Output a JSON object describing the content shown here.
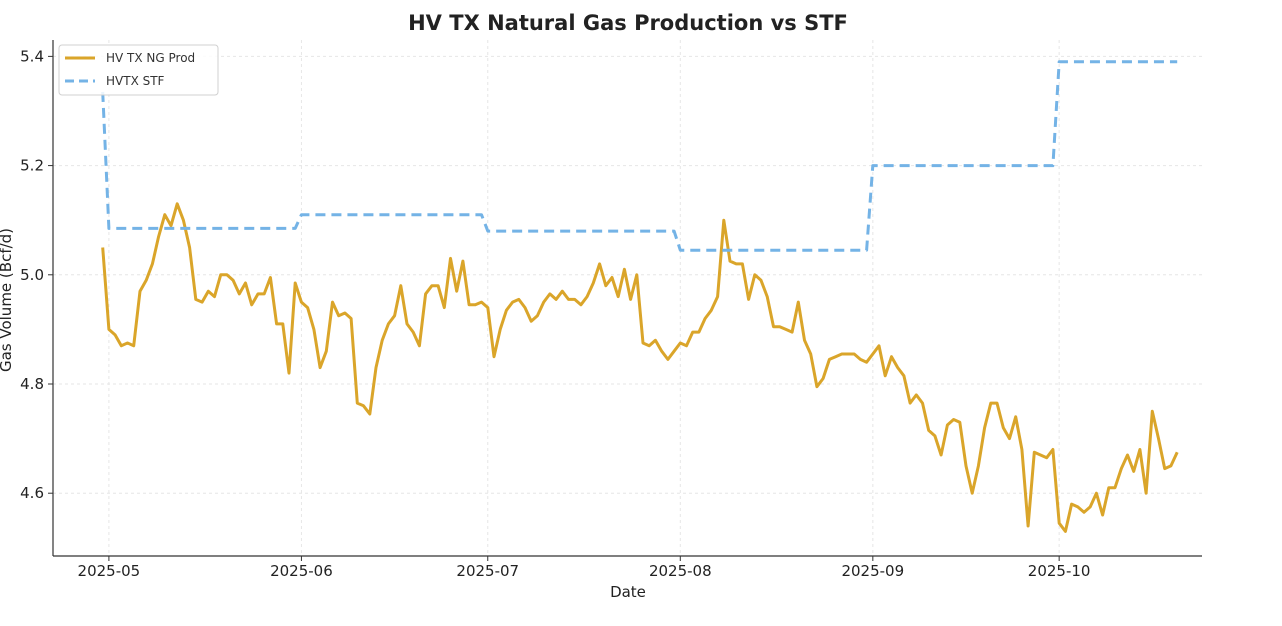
{
  "chart_data": {
    "type": "line",
    "title": "HV TX Natural Gas Production vs STF",
    "xlabel": "Date",
    "ylabel": "Gas Volume (Bcf/d)",
    "ylim": [
      4.485,
      5.43
    ],
    "xlim": [
      "2025-04-22",
      "2025-10-24"
    ],
    "x_ticks": [
      "2025-05",
      "2025-06",
      "2025-07",
      "2025-08",
      "2025-09",
      "2025-10"
    ],
    "y_ticks": [
      "4.6",
      "4.8",
      "5.0",
      "5.2",
      "5.4"
    ],
    "grid": true,
    "legend_position": "top-left",
    "colors": {
      "production": "#DAA52A",
      "stf": "#74B3E6"
    },
    "series": [
      {
        "name": "HV TX NG Prod",
        "style": "solid",
        "points": [
          [
            "2025-04-30",
            5.05
          ],
          [
            "2025-05-01",
            4.9
          ],
          [
            "2025-05-02",
            4.89
          ],
          [
            "2025-05-03",
            4.87
          ],
          [
            "2025-05-04",
            4.875
          ],
          [
            "2025-05-05",
            4.87
          ],
          [
            "2025-05-06",
            4.97
          ],
          [
            "2025-05-07",
            4.99
          ],
          [
            "2025-05-08",
            5.02
          ],
          [
            "2025-05-09",
            5.07
          ],
          [
            "2025-05-10",
            5.11
          ],
          [
            "2025-05-11",
            5.09
          ],
          [
            "2025-05-12",
            5.13
          ],
          [
            "2025-05-13",
            5.1
          ],
          [
            "2025-05-14",
            5.05
          ],
          [
            "2025-05-15",
            4.955
          ],
          [
            "2025-05-16",
            4.95
          ],
          [
            "2025-05-17",
            4.97
          ],
          [
            "2025-05-18",
            4.96
          ],
          [
            "2025-05-19",
            5.0
          ],
          [
            "2025-05-20",
            5.0
          ],
          [
            "2025-05-21",
            4.99
          ],
          [
            "2025-05-22",
            4.965
          ],
          [
            "2025-05-23",
            4.985
          ],
          [
            "2025-05-24",
            4.945
          ],
          [
            "2025-05-25",
            4.965
          ],
          [
            "2025-05-26",
            4.965
          ],
          [
            "2025-05-27",
            4.995
          ],
          [
            "2025-05-28",
            4.91
          ],
          [
            "2025-05-29",
            4.91
          ],
          [
            "2025-05-30",
            4.82
          ],
          [
            "2025-05-31",
            4.985
          ],
          [
            "2025-06-01",
            4.95
          ],
          [
            "2025-06-02",
            4.94
          ],
          [
            "2025-06-03",
            4.9
          ],
          [
            "2025-06-04",
            4.83
          ],
          [
            "2025-06-05",
            4.86
          ],
          [
            "2025-06-06",
            4.95
          ],
          [
            "2025-06-07",
            4.925
          ],
          [
            "2025-06-08",
            4.93
          ],
          [
            "2025-06-09",
            4.92
          ],
          [
            "2025-06-10",
            4.765
          ],
          [
            "2025-06-11",
            4.76
          ],
          [
            "2025-06-12",
            4.745
          ],
          [
            "2025-06-13",
            4.83
          ],
          [
            "2025-06-14",
            4.88
          ],
          [
            "2025-06-15",
            4.91
          ],
          [
            "2025-06-16",
            4.925
          ],
          [
            "2025-06-17",
            4.98
          ],
          [
            "2025-06-18",
            4.91
          ],
          [
            "2025-06-19",
            4.895
          ],
          [
            "2025-06-20",
            4.87
          ],
          [
            "2025-06-21",
            4.965
          ],
          [
            "2025-06-22",
            4.98
          ],
          [
            "2025-06-23",
            4.98
          ],
          [
            "2025-06-24",
            4.94
          ],
          [
            "2025-06-25",
            5.03
          ],
          [
            "2025-06-26",
            4.97
          ],
          [
            "2025-06-27",
            5.025
          ],
          [
            "2025-06-28",
            4.945
          ],
          [
            "2025-06-29",
            4.945
          ],
          [
            "2025-06-30",
            4.95
          ],
          [
            "2025-07-01",
            4.94
          ],
          [
            "2025-07-02",
            4.85
          ],
          [
            "2025-07-03",
            4.9
          ],
          [
            "2025-07-04",
            4.935
          ],
          [
            "2025-07-05",
            4.95
          ],
          [
            "2025-07-06",
            4.955
          ],
          [
            "2025-07-07",
            4.94
          ],
          [
            "2025-07-08",
            4.915
          ],
          [
            "2025-07-09",
            4.925
          ],
          [
            "2025-07-10",
            4.95
          ],
          [
            "2025-07-11",
            4.965
          ],
          [
            "2025-07-12",
            4.955
          ],
          [
            "2025-07-13",
            4.97
          ],
          [
            "2025-07-14",
            4.955
          ],
          [
            "2025-07-15",
            4.955
          ],
          [
            "2025-07-16",
            4.945
          ],
          [
            "2025-07-17",
            4.96
          ],
          [
            "2025-07-18",
            4.985
          ],
          [
            "2025-07-19",
            5.02
          ],
          [
            "2025-07-20",
            4.98
          ],
          [
            "2025-07-21",
            4.995
          ],
          [
            "2025-07-22",
            4.96
          ],
          [
            "2025-07-23",
            5.01
          ],
          [
            "2025-07-24",
            4.955
          ],
          [
            "2025-07-25",
            5.0
          ],
          [
            "2025-07-26",
            4.875
          ],
          [
            "2025-07-27",
            4.87
          ],
          [
            "2025-07-28",
            4.88
          ],
          [
            "2025-07-29",
            4.86
          ],
          [
            "2025-07-30",
            4.845
          ],
          [
            "2025-07-31",
            4.86
          ],
          [
            "2025-08-01",
            4.875
          ],
          [
            "2025-08-02",
            4.87
          ],
          [
            "2025-08-03",
            4.895
          ],
          [
            "2025-08-04",
            4.895
          ],
          [
            "2025-08-05",
            4.92
          ],
          [
            "2025-08-06",
            4.935
          ],
          [
            "2025-08-07",
            4.96
          ],
          [
            "2025-08-08",
            5.1
          ],
          [
            "2025-08-09",
            5.025
          ],
          [
            "2025-08-10",
            5.02
          ],
          [
            "2025-08-11",
            5.02
          ],
          [
            "2025-08-12",
            4.955
          ],
          [
            "2025-08-13",
            5.0
          ],
          [
            "2025-08-14",
            4.99
          ],
          [
            "2025-08-15",
            4.96
          ],
          [
            "2025-08-16",
            4.905
          ],
          [
            "2025-08-17",
            4.905
          ],
          [
            "2025-08-18",
            4.9
          ],
          [
            "2025-08-19",
            4.895
          ],
          [
            "2025-08-20",
            4.95
          ],
          [
            "2025-08-21",
            4.88
          ],
          [
            "2025-08-22",
            4.855
          ],
          [
            "2025-08-23",
            4.795
          ],
          [
            "2025-08-24",
            4.81
          ],
          [
            "2025-08-25",
            4.845
          ],
          [
            "2025-08-26",
            4.85
          ],
          [
            "2025-08-27",
            4.855
          ],
          [
            "2025-08-28",
            4.855
          ],
          [
            "2025-08-29",
            4.855
          ],
          [
            "2025-08-30",
            4.845
          ],
          [
            "2025-08-31",
            4.84
          ],
          [
            "2025-09-01",
            4.855
          ],
          [
            "2025-09-02",
            4.87
          ],
          [
            "2025-09-03",
            4.815
          ],
          [
            "2025-09-04",
            4.85
          ],
          [
            "2025-09-05",
            4.83
          ],
          [
            "2025-09-06",
            4.815
          ],
          [
            "2025-09-07",
            4.765
          ],
          [
            "2025-09-08",
            4.78
          ],
          [
            "2025-09-09",
            4.765
          ],
          [
            "2025-09-10",
            4.715
          ],
          [
            "2025-09-11",
            4.705
          ],
          [
            "2025-09-12",
            4.67
          ],
          [
            "2025-09-13",
            4.725
          ],
          [
            "2025-09-14",
            4.735
          ],
          [
            "2025-09-15",
            4.73
          ],
          [
            "2025-09-16",
            4.65
          ],
          [
            "2025-09-17",
            4.6
          ],
          [
            "2025-09-18",
            4.65
          ],
          [
            "2025-09-19",
            4.72
          ],
          [
            "2025-09-20",
            4.765
          ],
          [
            "2025-09-21",
            4.765
          ],
          [
            "2025-09-22",
            4.72
          ],
          [
            "2025-09-23",
            4.7
          ],
          [
            "2025-09-24",
            4.74
          ],
          [
            "2025-09-25",
            4.68
          ],
          [
            "2025-09-26",
            4.54
          ],
          [
            "2025-09-27",
            4.675
          ],
          [
            "2025-09-28",
            4.67
          ],
          [
            "2025-09-29",
            4.665
          ],
          [
            "2025-09-30",
            4.68
          ],
          [
            "2025-10-01",
            4.545
          ],
          [
            "2025-10-02",
            4.53
          ],
          [
            "2025-10-03",
            4.58
          ],
          [
            "2025-10-04",
            4.575
          ],
          [
            "2025-10-05",
            4.565
          ],
          [
            "2025-10-06",
            4.575
          ],
          [
            "2025-10-07",
            4.6
          ],
          [
            "2025-10-08",
            4.56
          ],
          [
            "2025-10-09",
            4.61
          ],
          [
            "2025-10-10",
            4.61
          ],
          [
            "2025-10-11",
            4.645
          ],
          [
            "2025-10-12",
            4.67
          ],
          [
            "2025-10-13",
            4.64
          ],
          [
            "2025-10-14",
            4.68
          ],
          [
            "2025-10-15",
            4.6
          ],
          [
            "2025-10-16",
            4.75
          ],
          [
            "2025-10-17",
            4.7
          ],
          [
            "2025-10-18",
            4.645
          ],
          [
            "2025-10-19",
            4.65
          ],
          [
            "2025-10-20",
            4.675
          ]
        ]
      },
      {
        "name": "HVTX STF",
        "style": "dashed",
        "points": [
          [
            "2025-04-30",
            5.335
          ],
          [
            "2025-05-01",
            5.085
          ],
          [
            "2025-05-31",
            5.085
          ],
          [
            "2025-06-01",
            5.11
          ],
          [
            "2025-06-30",
            5.11
          ],
          [
            "2025-07-01",
            5.08
          ],
          [
            "2025-07-31",
            5.08
          ],
          [
            "2025-08-01",
            5.045
          ],
          [
            "2025-08-31",
            5.045
          ],
          [
            "2025-09-01",
            5.2
          ],
          [
            "2025-09-30",
            5.2
          ],
          [
            "2025-10-01",
            5.39
          ],
          [
            "2025-10-20",
            5.39
          ]
        ]
      }
    ]
  }
}
